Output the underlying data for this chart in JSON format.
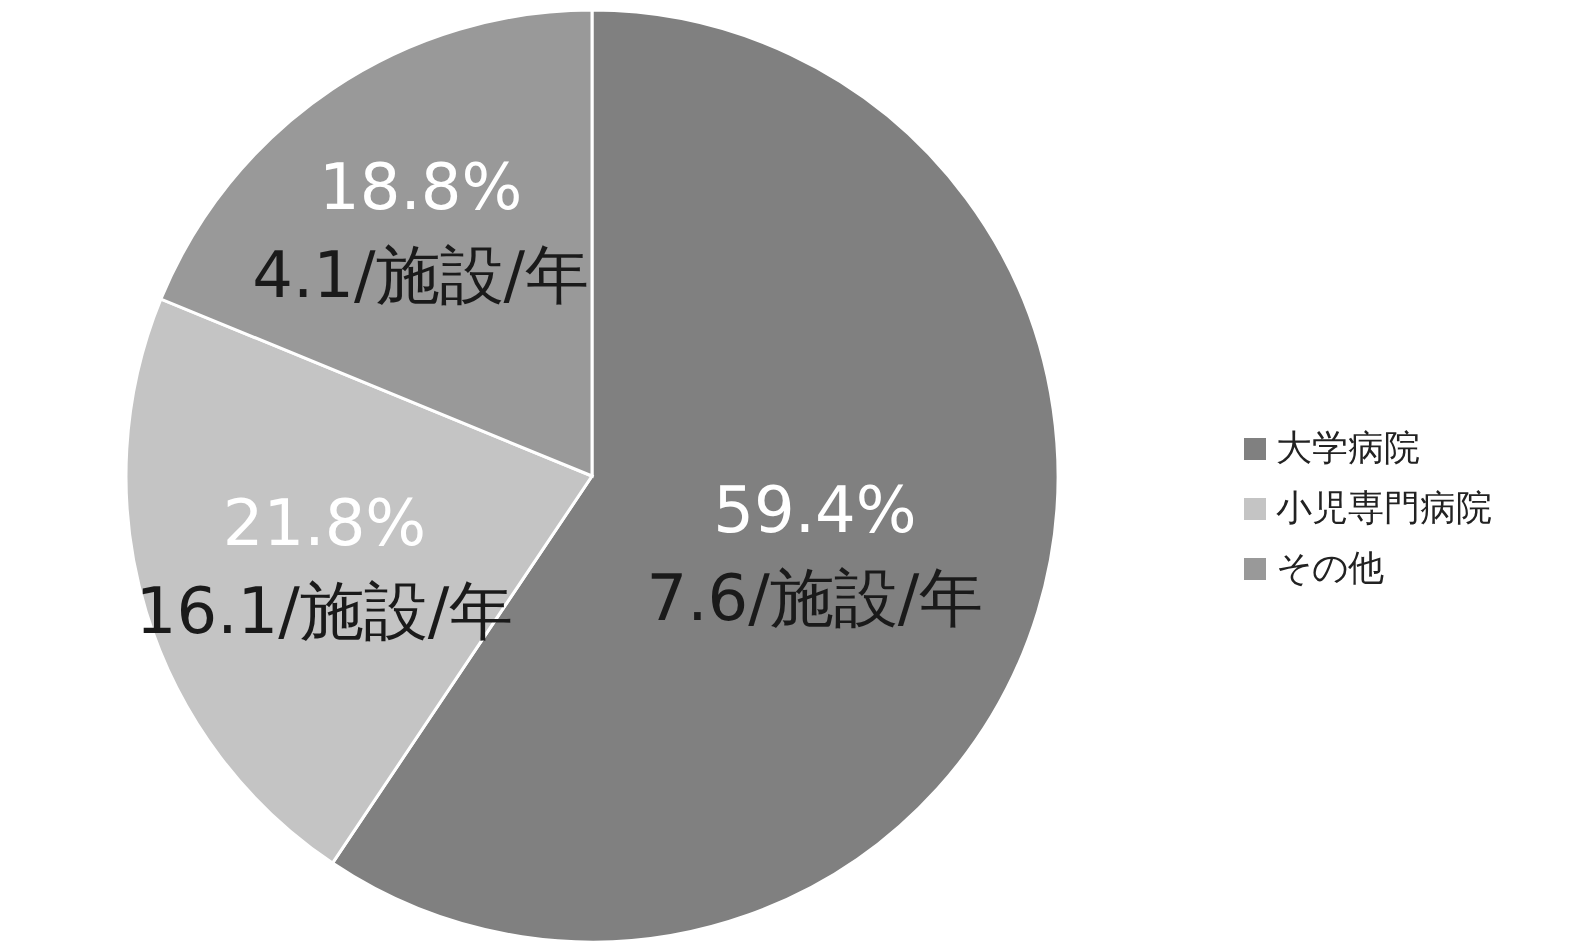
{
  "chart_data": {
    "type": "pie",
    "categories": [
      "大学病院",
      "小児専門病院",
      "その他"
    ],
    "values": [
      59.4,
      21.8,
      18.8
    ],
    "colors": [
      "#808080",
      "#c4c4c4",
      "#999999"
    ],
    "value_labels": [
      "59.4%",
      "21.8%",
      "18.8%"
    ],
    "annotations": [
      {
        "text": "7.6/施設/年",
        "x": "大学病院"
      },
      {
        "text": "16.1/施設/年",
        "x": "小児専門病院"
      },
      {
        "text": "4.1/施設/年",
        "x": "その他"
      }
    ],
    "legend": "right"
  }
}
